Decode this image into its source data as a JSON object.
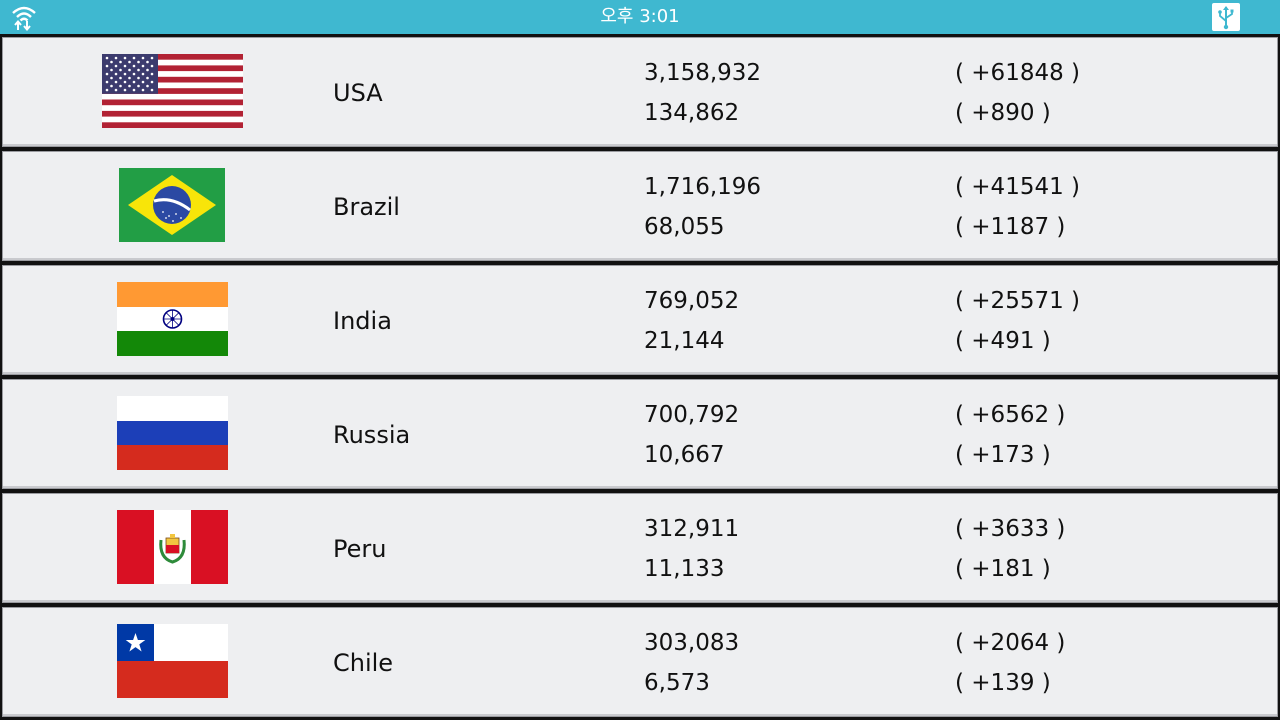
{
  "status_bar": {
    "time": "오후 3:01",
    "left_icon": "wifi-transfer-icon",
    "right_icon": "usb-icon"
  },
  "rows": [
    {
      "flag": "usa-flag",
      "country": "USA",
      "cases": "3,158,932",
      "cases_delta": "( +61848 )",
      "deaths": "134,862",
      "deaths_delta": "( +890 )"
    },
    {
      "flag": "brazil-flag",
      "country": "Brazil",
      "cases": "1,716,196",
      "cases_delta": "( +41541 )",
      "deaths": "68,055",
      "deaths_delta": "( +1187 )"
    },
    {
      "flag": "india-flag",
      "country": "India",
      "cases": "769,052",
      "cases_delta": "( +25571 )",
      "deaths": "21,144",
      "deaths_delta": "( +491 )"
    },
    {
      "flag": "russia-flag",
      "country": "Russia",
      "cases": "700,792",
      "cases_delta": "( +6562 )",
      "deaths": "10,667",
      "deaths_delta": "( +173 )"
    },
    {
      "flag": "peru-flag",
      "country": "Peru",
      "cases": "312,911",
      "cases_delta": "( +3633 )",
      "deaths": "11,133",
      "deaths_delta": "( +181 )"
    },
    {
      "flag": "chile-flag",
      "country": "Chile",
      "cases": "303,083",
      "cases_delta": "( +2064 )",
      "deaths": "6,573",
      "deaths_delta": "( +139 )"
    }
  ]
}
